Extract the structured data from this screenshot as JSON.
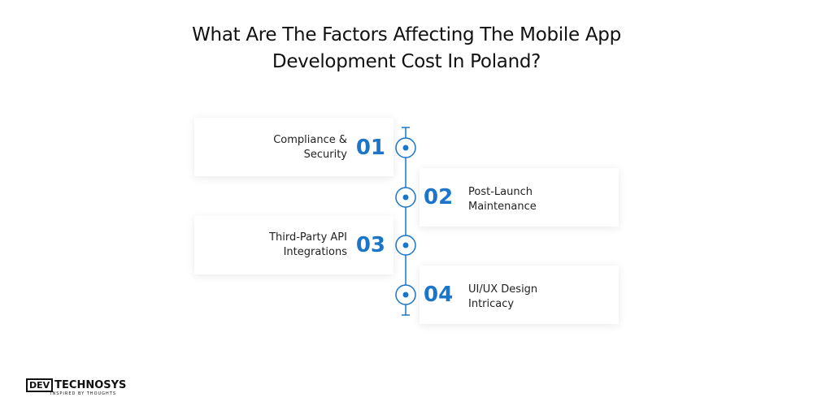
{
  "title": [
    "What Are The Factors Affecting The Mobile App",
    "Development Cost In Poland?"
  ],
  "items": [
    {
      "number": "01",
      "label": [
        "Compliance &",
        "Security"
      ],
      "side": "left"
    },
    {
      "number": "02",
      "label": [
        "Post-Launch",
        "Maintenance"
      ],
      "side": "right"
    },
    {
      "number": "03",
      "label": [
        "Third-Party API",
        "Integrations"
      ],
      "side": "left"
    },
    {
      "number": "04",
      "label": [
        "UI/UX Design",
        "Intricacy"
      ],
      "side": "right"
    }
  ],
  "logo": {
    "mark": "DEV",
    "name": "TECHNOSYS",
    "tagline": "INSPIRED BY THOUGHTS"
  }
}
